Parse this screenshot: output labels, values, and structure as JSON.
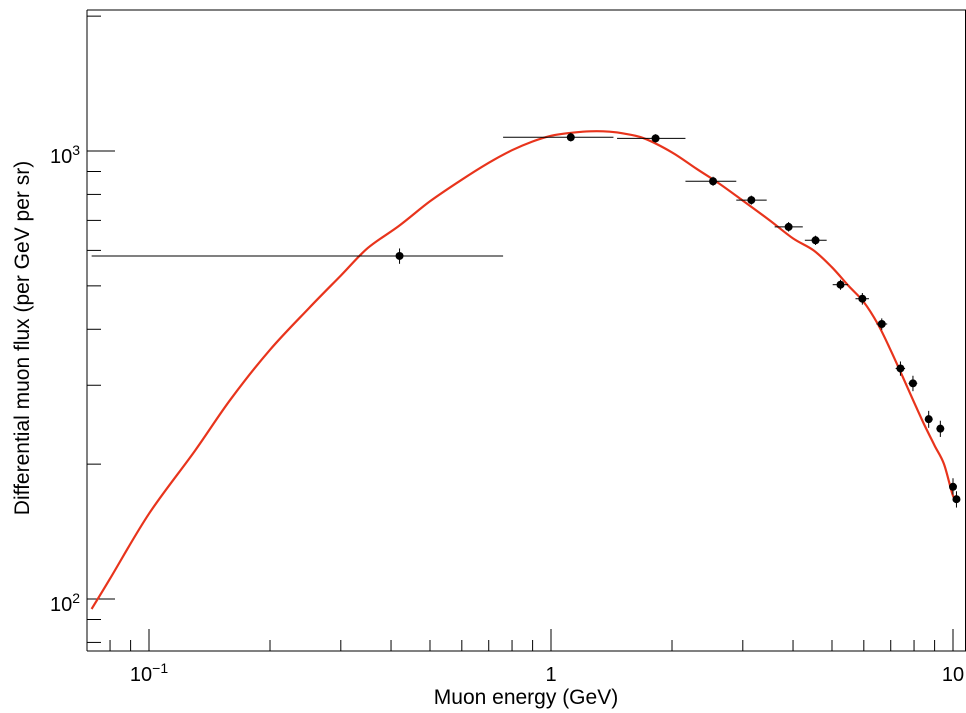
{
  "chart_data": {
    "type": "scatter",
    "title": "",
    "xlabel": "Muon energy (GeV)",
    "ylabel": "Differential muon flux (per GeV per sr)",
    "xscale": "log",
    "yscale": "log",
    "xlim": [
      0.072,
      10.2
    ],
    "ylim": [
      80,
      2100
    ],
    "grid": false,
    "legend": "none",
    "x_tick_labels": [
      {
        "value": 0.1,
        "base": "10",
        "exp": "−1"
      },
      {
        "value": 1,
        "base": "1",
        "exp": ""
      },
      {
        "value": 10,
        "base": "10",
        "exp": ""
      }
    ],
    "y_tick_labels": [
      {
        "value": 100,
        "base": "10",
        "exp": "2"
      },
      {
        "value": 1000,
        "base": "10",
        "exp": "3"
      }
    ],
    "series": [
      {
        "kind": "points_with_errors",
        "color": "#000000",
        "points": [
          {
            "x": 0.42,
            "y": 583,
            "xlo": 0.072,
            "xhi": 0.76,
            "ylo": 560,
            "yhi": 606
          },
          {
            "x": 1.12,
            "y": 1073,
            "xlo": 0.76,
            "xhi": 1.43,
            "ylo": 1050,
            "yhi": 1098
          },
          {
            "x": 1.82,
            "y": 1067,
            "xlo": 1.46,
            "xhi": 2.16,
            "ylo": 1045,
            "yhi": 1090
          },
          {
            "x": 2.53,
            "y": 856,
            "xlo": 2.16,
            "xhi": 2.89,
            "ylo": 836,
            "yhi": 876
          },
          {
            "x": 3.15,
            "y": 777,
            "xlo": 2.89,
            "xhi": 3.44,
            "ylo": 759,
            "yhi": 795
          },
          {
            "x": 3.9,
            "y": 677,
            "xlo": 3.6,
            "xhi": 4.23,
            "ylo": 661,
            "yhi": 694
          },
          {
            "x": 4.55,
            "y": 632,
            "xlo": 4.28,
            "xhi": 4.85,
            "ylo": 617,
            "yhi": 647
          },
          {
            "x": 5.25,
            "y": 503,
            "xlo": 5.02,
            "xhi": 5.48,
            "ylo": 490,
            "yhi": 516
          },
          {
            "x": 5.95,
            "y": 468,
            "xlo": 5.72,
            "xhi": 6.18,
            "ylo": 454,
            "yhi": 482
          },
          {
            "x": 6.65,
            "y": 411,
            "xlo": 6.45,
            "xhi": 6.86,
            "ylo": 399,
            "yhi": 423
          },
          {
            "x": 7.4,
            "y": 327,
            "xlo": 7.2,
            "xhi": 7.6,
            "ylo": 315,
            "yhi": 339
          },
          {
            "x": 7.95,
            "y": 303,
            "xlo": 7.75,
            "xhi": 8.15,
            "ylo": 291,
            "yhi": 315
          },
          {
            "x": 8.7,
            "y": 252,
            "xlo": 8.52,
            "xhi": 8.9,
            "ylo": 241,
            "yhi": 263
          },
          {
            "x": 9.3,
            "y": 240,
            "xlo": 9.12,
            "xhi": 9.48,
            "ylo": 230,
            "yhi": 250
          },
          {
            "x": 10.0,
            "y": 178,
            "xlo": 9.85,
            "xhi": 10.15,
            "ylo": 171,
            "yhi": 186
          },
          {
            "x": 10.2,
            "y": 167,
            "xlo": 10.1,
            "xhi": 10.3,
            "ylo": 160,
            "yhi": 174
          }
        ]
      },
      {
        "kind": "curve",
        "color": "#e8341c",
        "x": [
          0.072,
          0.08,
          0.1,
          0.13,
          0.16,
          0.2,
          0.25,
          0.3,
          0.35,
          0.42,
          0.5,
          0.6,
          0.7,
          0.8,
          0.9,
          1.0,
          1.1,
          1.2,
          1.3,
          1.4,
          1.5,
          1.7,
          2.0,
          2.3,
          2.6,
          3.0,
          3.5,
          4.0,
          4.5,
          5.0,
          5.5,
          6.0,
          6.5,
          7.0,
          7.5,
          8.0,
          8.5,
          9.0,
          9.5,
          10.0,
          10.2
        ],
        "y": [
          95,
          111,
          155,
          214,
          280,
          360,
          446,
          527,
          607,
          682,
          772,
          863,
          941,
          1004,
          1050,
          1081,
          1096,
          1104,
          1107,
          1104,
          1096,
          1068,
          993,
          913,
          850,
          775,
          700,
          638,
          600,
          550,
          500,
          460,
          411,
          359,
          313,
          275,
          244,
          220,
          200,
          170,
          170
        ]
      }
    ]
  }
}
